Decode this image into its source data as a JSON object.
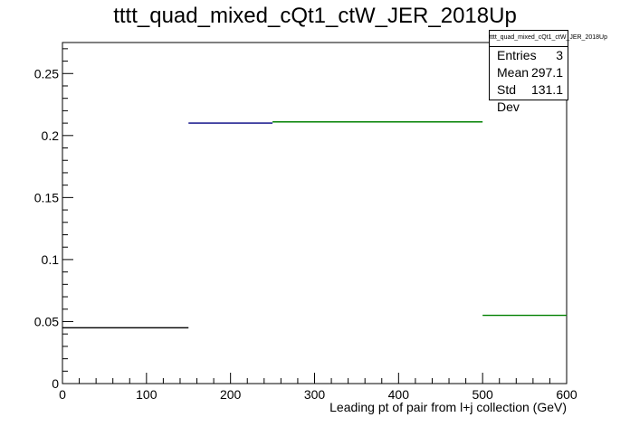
{
  "chart_data": {
    "type": "bar",
    "style": "step-histogram",
    "title": "tttt_quad_mixed_cQt1_ctW_JER_2018Up",
    "xlabel": "Leading pt of pair from l+j collection (GeV)",
    "ylabel": "",
    "xlim": [
      0,
      600
    ],
    "ylim": [
      0,
      0.275
    ],
    "xticks": [
      0,
      100,
      200,
      300,
      400,
      500,
      600
    ],
    "yticks": [
      0,
      0.05,
      0.1,
      0.15,
      0.2,
      0.25
    ],
    "xtick_labels": [
      "0",
      "100",
      "200",
      "300",
      "400",
      "500",
      "600"
    ],
    "ytick_labels": [
      "0",
      "0.05",
      "0.1",
      "0.15",
      "0.2",
      "0.25"
    ],
    "grid": false,
    "bins": [
      {
        "xlow": 0,
        "xhigh": 150,
        "value": 0.045,
        "color": "#000000"
      },
      {
        "xlow": 150,
        "xhigh": 250,
        "value": 0.21,
        "color": "#000080"
      },
      {
        "xlow": 250,
        "xhigh": 500,
        "value": 0.211,
        "color": "#008000"
      },
      {
        "xlow": 500,
        "xhigh": 600,
        "value": 0.055,
        "color": "#008000"
      }
    ],
    "stats": {
      "title": "tttt_quad_mixed_cQt1_ctW_JER_2018Up",
      "entries_label": "Entries",
      "entries": "3",
      "mean_label": "Mean",
      "mean": "297.1",
      "stddev_label": "Std Dev",
      "stddev": "131.1"
    }
  }
}
